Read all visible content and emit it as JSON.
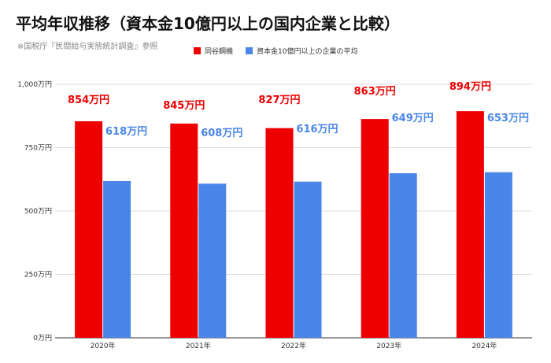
{
  "title": "平均年収推移（資本金10億円以上の国内企業と比較）",
  "subtitle": "※国税庁『民間給与実態統計調査』参照",
  "colors": {
    "company": "#ee0000",
    "average": "#4a86e8"
  },
  "chart_data": {
    "type": "bar",
    "categories": [
      "2020年",
      "2021年",
      "2022年",
      "2023年",
      "2024年"
    ],
    "series": [
      {
        "name": "同谷鋼機",
        "values": [
          854,
          845,
          827,
          863,
          894
        ],
        "labels": [
          "854万円",
          "845万円",
          "827万円",
          "863万円",
          "894万円"
        ]
      },
      {
        "name": "資本金10億円以上の企業の平均",
        "values": [
          618,
          608,
          616,
          649,
          653
        ],
        "labels": [
          "618万円",
          "608万円",
          "616万円",
          "649万円",
          "653万円"
        ]
      }
    ],
    "ylim": [
      0,
      1000
    ],
    "yticks": [
      0,
      250,
      500,
      750,
      1000
    ],
    "ytick_labels": [
      "0万円",
      "250万円",
      "500万円",
      "750万円",
      "1,000万円"
    ],
    "grid": true,
    "legend_position": "top"
  }
}
